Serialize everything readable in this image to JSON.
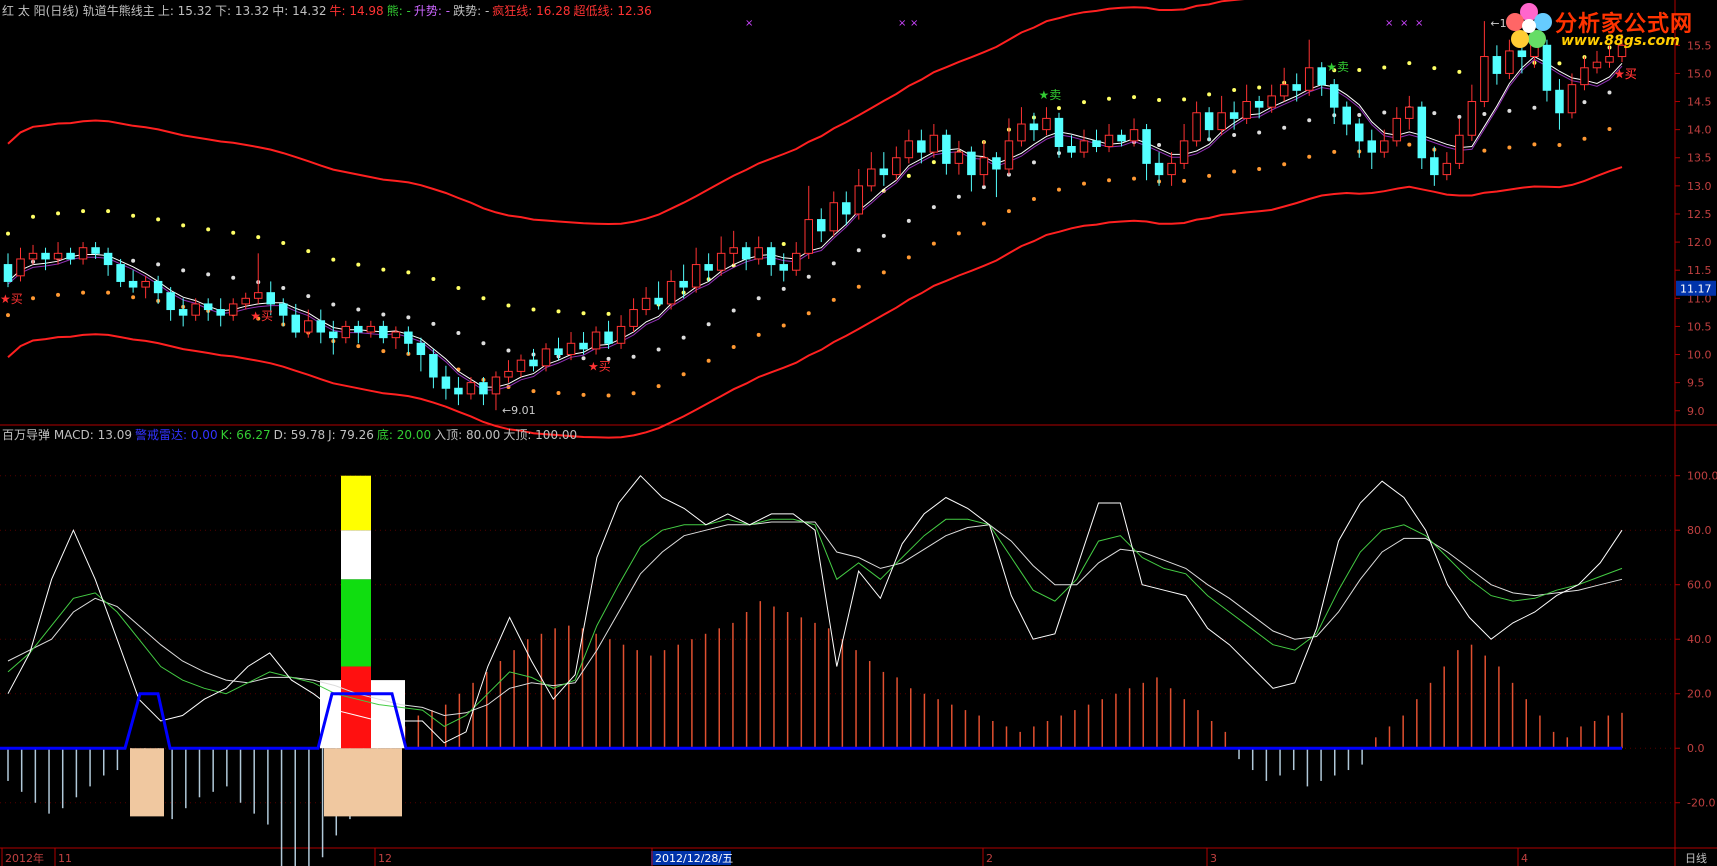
{
  "header_top": {
    "items": [
      {
        "text": "红 太 阳(日线) 轨道牛熊线主",
        "color": "#c0c0c0"
      },
      {
        "text": "上: 15.32",
        "color": "#c0c0c0"
      },
      {
        "text": "下: 13.32",
        "color": "#c0c0c0"
      },
      {
        "text": "中: 14.32",
        "color": "#c0c0c0"
      },
      {
        "text": "牛: 14.98",
        "color": "#ff3333"
      },
      {
        "text": "熊: -",
        "color": "#33cc33"
      },
      {
        "text": "升势: -",
        "color": "#cc66ff"
      },
      {
        "text": "跌势: -",
        "color": "#c0c0c0"
      },
      {
        "text": "疯狂线: 16.28",
        "color": "#ff3333"
      },
      {
        "text": "超低线: 12.36",
        "color": "#ff3333"
      }
    ]
  },
  "header_bottom": {
    "items": [
      {
        "text": "百万导弹 MACD: 13.09",
        "color": "#c0c0c0"
      },
      {
        "text": "警戒雷达: 0.00",
        "color": "#3333ff"
      },
      {
        "text": "K: 66.27",
        "color": "#33cc33"
      },
      {
        "text": "D: 59.78",
        "color": "#c0c0c0"
      },
      {
        "text": "J: 79.26",
        "color": "#c0c0c0"
      },
      {
        "text": "底: 20.00",
        "color": "#33cc33"
      },
      {
        "text": "入顶: 80.00",
        "color": "#c0c0c0"
      },
      {
        "text": "大顶: 100.00",
        "color": "#c0c0c0"
      }
    ]
  },
  "logo": {
    "text1": "分析家公式网",
    "text2": "www.88gs.com"
  },
  "colors": {
    "up": "#ff3333",
    "down": "#54ffff",
    "grid": "#8b0000",
    "axis": "#b00000",
    "yellow": "#ffff66",
    "white": "#ffffff",
    "orange": "#ff9933",
    "line_blue": "#0000ff"
  },
  "chart_data": {
    "type": "candlestick",
    "period": "日线",
    "price_axis": {
      "ticks": [
        "15.5",
        "15.0",
        "14.5",
        "14.0",
        "13.5",
        "13.0",
        "12.5",
        "12.0",
        "11.5",
        "11.0",
        "10.5",
        "10.0",
        "9.5",
        "9.0"
      ],
      "range": [
        8.8,
        15.95
      ]
    },
    "current_price_label": "11.17",
    "annotations": [
      {
        "text": "15.93",
        "type": "high"
      },
      {
        "text": "9.01",
        "type": "low"
      }
    ],
    "signals": [
      {
        "text": "★买",
        "color": "#ff3333",
        "index": 0
      },
      {
        "text": "★买",
        "color": "#ff3333",
        "index": 20
      },
      {
        "text": "★买",
        "color": "#ff3333",
        "index": 47
      },
      {
        "text": "★卖",
        "color": "#33cc33",
        "index": 83
      },
      {
        "text": "★卖",
        "color": "#33cc33",
        "index": 106
      },
      {
        "text": "★买",
        "color": "#ff3333",
        "index": 146
      },
      {
        "text": "★买",
        "color": "#ff3333",
        "index": 173
      },
      {
        "text": "★买",
        "color": "#ff3333",
        "index": 202
      }
    ],
    "candles": [
      [
        11.6,
        11.3,
        11.8,
        11.2
      ],
      [
        11.4,
        11.7,
        11.9,
        11.3
      ],
      [
        11.7,
        11.8,
        11.95,
        11.6
      ],
      [
        11.8,
        11.7,
        11.9,
        11.5
      ],
      [
        11.7,
        11.8,
        12.0,
        11.6
      ],
      [
        11.8,
        11.7,
        11.9,
        11.6
      ],
      [
        11.7,
        11.9,
        12.0,
        11.6
      ],
      [
        11.9,
        11.8,
        12.0,
        11.7
      ],
      [
        11.8,
        11.6,
        11.9,
        11.4
      ],
      [
        11.6,
        11.3,
        11.7,
        11.2
      ],
      [
        11.3,
        11.2,
        11.5,
        11.1
      ],
      [
        11.2,
        11.3,
        11.4,
        11.0
      ],
      [
        11.3,
        11.1,
        11.4,
        10.9
      ],
      [
        11.1,
        10.8,
        11.2,
        10.6
      ],
      [
        10.8,
        10.7,
        11.0,
        10.5
      ],
      [
        10.7,
        10.9,
        11.0,
        10.6
      ],
      [
        10.9,
        10.8,
        11.0,
        10.6
      ],
      [
        10.8,
        10.7,
        11.0,
        10.5
      ],
      [
        10.7,
        10.9,
        11.0,
        10.6
      ],
      [
        10.9,
        11.0,
        11.1,
        10.8
      ],
      [
        11.0,
        11.1,
        11.8,
        10.9
      ],
      [
        11.1,
        10.9,
        11.3,
        10.7
      ],
      [
        10.9,
        10.7,
        11.0,
        10.5
      ],
      [
        10.7,
        10.4,
        10.9,
        10.3
      ],
      [
        10.4,
        10.6,
        10.8,
        10.3
      ],
      [
        10.6,
        10.4,
        10.8,
        10.2
      ],
      [
        10.4,
        10.3,
        10.6,
        10.0
      ],
      [
        10.3,
        10.5,
        10.6,
        10.2
      ],
      [
        10.5,
        10.4,
        10.6,
        10.2
      ],
      [
        10.4,
        10.5,
        10.6,
        10.3
      ],
      [
        10.5,
        10.3,
        10.6,
        10.2
      ],
      [
        10.3,
        10.4,
        10.5,
        10.1
      ],
      [
        10.4,
        10.2,
        10.5,
        10.0
      ],
      [
        10.2,
        10.0,
        10.3,
        9.7
      ],
      [
        10.0,
        9.6,
        10.1,
        9.4
      ],
      [
        9.6,
        9.4,
        9.8,
        9.2
      ],
      [
        9.4,
        9.3,
        9.6,
        9.1
      ],
      [
        9.3,
        9.5,
        9.6,
        9.2
      ],
      [
        9.5,
        9.3,
        9.6,
        9.1
      ],
      [
        9.3,
        9.6,
        9.7,
        9.01
      ],
      [
        9.6,
        9.7,
        9.9,
        9.5
      ],
      [
        9.7,
        9.9,
        10.0,
        9.6
      ],
      [
        9.9,
        9.8,
        10.1,
        9.7
      ],
      [
        9.8,
        10.1,
        10.2,
        9.7
      ],
      [
        10.1,
        10.0,
        10.3,
        9.9
      ],
      [
        10.0,
        10.2,
        10.4,
        9.9
      ],
      [
        10.2,
        10.1,
        10.4,
        10.0
      ],
      [
        10.1,
        10.4,
        10.5,
        10.0
      ],
      [
        10.4,
        10.2,
        10.6,
        10.1
      ],
      [
        10.2,
        10.5,
        10.7,
        10.1
      ],
      [
        10.5,
        10.8,
        11.0,
        10.4
      ],
      [
        10.8,
        11.0,
        11.2,
        10.7
      ],
      [
        11.0,
        10.9,
        11.3,
        10.8
      ],
      [
        10.9,
        11.3,
        11.5,
        10.8
      ],
      [
        11.3,
        11.2,
        11.6,
        11.0
      ],
      [
        11.2,
        11.6,
        11.9,
        11.1
      ],
      [
        11.6,
        11.5,
        11.8,
        11.3
      ],
      [
        11.5,
        11.8,
        12.1,
        11.4
      ],
      [
        11.8,
        11.9,
        12.2,
        11.6
      ],
      [
        11.9,
        11.7,
        12.0,
        11.5
      ],
      [
        11.7,
        11.9,
        12.1,
        11.6
      ],
      [
        11.9,
        11.6,
        12.0,
        11.4
      ],
      [
        11.6,
        11.5,
        11.8,
        11.3
      ],
      [
        11.5,
        11.8,
        12.0,
        11.4
      ],
      [
        11.8,
        12.4,
        13.0,
        11.7
      ],
      [
        12.4,
        12.2,
        12.6,
        12.0
      ],
      [
        12.2,
        12.7,
        12.9,
        12.1
      ],
      [
        12.7,
        12.5,
        12.9,
        12.3
      ],
      [
        12.5,
        13.0,
        13.3,
        12.4
      ],
      [
        13.0,
        13.3,
        13.6,
        12.9
      ],
      [
        13.3,
        13.2,
        13.6,
        13.0
      ],
      [
        13.2,
        13.5,
        13.7,
        13.1
      ],
      [
        13.5,
        13.8,
        14.0,
        13.4
      ],
      [
        13.8,
        13.6,
        14.0,
        13.4
      ],
      [
        13.6,
        13.9,
        14.1,
        13.5
      ],
      [
        13.9,
        13.4,
        14.0,
        13.2
      ],
      [
        13.4,
        13.6,
        13.8,
        13.2
      ],
      [
        13.6,
        13.2,
        13.7,
        12.9
      ],
      [
        13.2,
        13.5,
        13.8,
        13.0
      ],
      [
        13.5,
        13.3,
        13.6,
        12.8
      ],
      [
        13.3,
        13.8,
        14.2,
        13.2
      ],
      [
        13.8,
        14.1,
        14.4,
        13.7
      ],
      [
        14.1,
        14.0,
        14.3,
        13.8
      ],
      [
        14.0,
        14.2,
        14.4,
        13.9
      ],
      [
        14.2,
        13.7,
        14.3,
        13.5
      ],
      [
        13.7,
        13.6,
        13.9,
        13.5
      ],
      [
        13.6,
        13.8,
        14.0,
        13.5
      ],
      [
        13.8,
        13.7,
        14.0,
        13.6
      ],
      [
        13.7,
        13.9,
        14.1,
        13.6
      ],
      [
        13.9,
        13.8,
        14.0,
        13.7
      ],
      [
        13.8,
        14.0,
        14.2,
        13.7
      ],
      [
        14.0,
        13.4,
        14.1,
        13.1
      ],
      [
        13.4,
        13.2,
        13.6,
        13.0
      ],
      [
        13.2,
        13.4,
        13.6,
        13.0
      ],
      [
        13.4,
        13.8,
        14.1,
        13.3
      ],
      [
        13.8,
        14.3,
        14.5,
        13.7
      ],
      [
        14.3,
        14.0,
        14.4,
        13.8
      ],
      [
        14.0,
        14.3,
        14.6,
        13.9
      ],
      [
        14.3,
        14.2,
        14.5,
        14.0
      ],
      [
        14.2,
        14.5,
        14.8,
        14.1
      ],
      [
        14.5,
        14.4,
        14.6,
        14.2
      ],
      [
        14.4,
        14.6,
        14.8,
        14.3
      ],
      [
        14.6,
        14.8,
        15.1,
        14.5
      ],
      [
        14.8,
        14.7,
        15.0,
        14.5
      ],
      [
        14.7,
        15.1,
        15.6,
        14.6
      ],
      [
        15.1,
        14.8,
        15.2,
        14.6
      ],
      [
        14.8,
        14.4,
        14.9,
        14.1
      ],
      [
        14.4,
        14.1,
        14.5,
        13.9
      ],
      [
        14.1,
        13.8,
        14.2,
        13.5
      ],
      [
        13.8,
        13.6,
        14.0,
        13.3
      ],
      [
        13.6,
        13.8,
        14.0,
        13.5
      ],
      [
        13.8,
        14.2,
        14.4,
        13.7
      ],
      [
        14.2,
        14.4,
        14.6,
        14.0
      ],
      [
        14.4,
        13.5,
        14.5,
        13.3
      ],
      [
        13.5,
        13.2,
        13.7,
        13.0
      ],
      [
        13.2,
        13.4,
        13.6,
        13.1
      ],
      [
        13.4,
        13.9,
        14.2,
        13.3
      ],
      [
        13.9,
        14.5,
        14.8,
        13.8
      ],
      [
        14.5,
        15.3,
        15.93,
        14.4
      ],
      [
        15.3,
        15.0,
        15.5,
        14.8
      ],
      [
        15.0,
        15.4,
        15.6,
        14.9
      ],
      [
        15.4,
        15.3,
        15.6,
        15.0
      ],
      [
        15.3,
        15.5,
        15.7,
        15.1
      ],
      [
        15.5,
        14.7,
        15.6,
        14.5
      ],
      [
        14.7,
        14.3,
        14.9,
        14.0
      ],
      [
        14.3,
        14.8,
        15.0,
        14.2
      ],
      [
        14.8,
        15.1,
        15.3,
        14.7
      ],
      [
        15.1,
        15.2,
        15.4,
        15.0
      ],
      [
        15.2,
        15.3,
        15.5,
        15.1
      ],
      [
        15.3,
        15.5,
        15.7,
        15.2
      ]
    ],
    "indicator_axis": {
      "ticks": [
        "100.0",
        "80.0",
        "60.0",
        "40.0",
        "20.0",
        "0.0",
        "-20.0"
      ],
      "range": [
        -30,
        112
      ]
    },
    "kdj": {
      "K": [
        28,
        35,
        45,
        55,
        57,
        50,
        40,
        30,
        25,
        22,
        20,
        24,
        28,
        26,
        24,
        20,
        18,
        16,
        15,
        14,
        8,
        12,
        20,
        28,
        26,
        22,
        25,
        45,
        60,
        74,
        80,
        82,
        82,
        84,
        82,
        84,
        84,
        82,
        62,
        68,
        62,
        70,
        78,
        84,
        84,
        82,
        70,
        58,
        54,
        62,
        76,
        78,
        70,
        66,
        64,
        56,
        50,
        44,
        38,
        36,
        42,
        58,
        72,
        80,
        82,
        78,
        70,
        62,
        56,
        54,
        55,
        58,
        60,
        63,
        66
      ],
      "D": [
        32,
        36,
        40,
        50,
        55,
        52,
        45,
        38,
        32,
        28,
        25,
        24,
        26,
        26,
        25,
        23,
        20,
        18,
        16,
        15,
        12,
        13,
        16,
        22,
        24,
        23,
        24,
        36,
        50,
        64,
        72,
        78,
        80,
        82,
        82,
        83,
        83,
        83,
        72,
        70,
        66,
        68,
        73,
        78,
        81,
        82,
        76,
        67,
        60,
        60,
        68,
        73,
        72,
        69,
        66,
        60,
        55,
        49,
        43,
        40,
        41,
        50,
        62,
        72,
        77,
        77,
        72,
        66,
        60,
        57,
        56,
        57,
        58,
        60,
        62
      ],
      "J": [
        20,
        35,
        62,
        80,
        62,
        40,
        18,
        10,
        12,
        18,
        22,
        30,
        35,
        25,
        20,
        14,
        12,
        10,
        10,
        10,
        2,
        6,
        30,
        48,
        32,
        18,
        27,
        70,
        90,
        100,
        92,
        88,
        82,
        86,
        82,
        86,
        86,
        80,
        30,
        65,
        55,
        75,
        86,
        92,
        88,
        82,
        56,
        40,
        42,
        66,
        90,
        90,
        60,
        58,
        56,
        44,
        38,
        30,
        22,
        24,
        44,
        76,
        90,
        98,
        92,
        80,
        60,
        48,
        40,
        46,
        50,
        56,
        60,
        68,
        80
      ]
    },
    "macd_hist": [
      -12,
      -16,
      -20,
      -24,
      -22,
      -18,
      -14,
      -10,
      -8,
      -14,
      -18,
      -20,
      -26,
      -22,
      -18,
      -16,
      -14,
      -20,
      -24,
      -28,
      -44,
      -50,
      -46,
      -40,
      -32,
      -26,
      -20,
      -14,
      4,
      8,
      12,
      14,
      16,
      20,
      24,
      28,
      32,
      36,
      40,
      42,
      44,
      45,
      44,
      42,
      40,
      38,
      36,
      34,
      36,
      38,
      40,
      42,
      44,
      46,
      50,
      54,
      52,
      50,
      48,
      46,
      44,
      40,
      36,
      32,
      28,
      26,
      22,
      20,
      18,
      16,
      14,
      12,
      10,
      8,
      6,
      8,
      10,
      12,
      14,
      16,
      18,
      20,
      22,
      24,
      26,
      22,
      18,
      14,
      10,
      6,
      -4,
      -8,
      -12,
      -10,
      -8,
      -14,
      -12,
      -10,
      -8,
      -6,
      4,
      8,
      12,
      18,
      24,
      30,
      36,
      38,
      34,
      30,
      24,
      18,
      12,
      6,
      4,
      8,
      10,
      12,
      13
    ]
  },
  "time_axis": {
    "labels": [
      "2012年",
      "11",
      "12",
      "2012/12/28/五",
      "2",
      "3",
      "4"
    ],
    "corner_label": "日线"
  }
}
